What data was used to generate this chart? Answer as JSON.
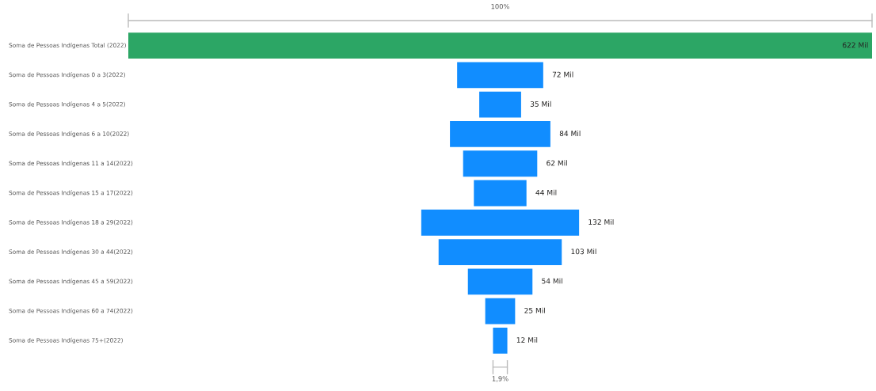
{
  "chart_data": {
    "type": "other",
    "categories": [
      "Soma de Pessoas Indígenas Total (2022)",
      "Soma de Pessoas Indígenas 0 a 3(2022)",
      "Soma de Pessoas Indígenas 4 a 5(2022)",
      "Soma de Pessoas Indígenas 6 a 10(2022)",
      "Soma de Pessoas Indígenas 11 a 14(2022)",
      "Soma de Pessoas Indígenas 15 a 17(2022)",
      "Soma de Pessoas Indígenas 18 a 29(2022)",
      "Soma de Pessoas Indígenas 30 a 44(2022)",
      "Soma de Pessoas Indígenas 45 a 59(2022)",
      "Soma de Pessoas Indígenas 60 a 74(2022)",
      "Soma de Pessoas Indígenas 75+(2022)"
    ],
    "values": [
      622,
      72,
      35,
      84,
      62,
      44,
      132,
      103,
      54,
      25,
      12
    ],
    "value_labels": [
      "622 Mil",
      "72 Mil",
      "35 Mil",
      "84 Mil",
      "62 Mil",
      "44 Mil",
      "132 Mil",
      "103 Mil",
      "54 Mil",
      "25 Mil",
      "12 Mil"
    ],
    "colors": [
      "#2ca665",
      "#118dff",
      "#118dff",
      "#118dff",
      "#118dff",
      "#118dff",
      "#118dff",
      "#118dff",
      "#118dff",
      "#118dff",
      "#118dff"
    ],
    "annotations": [
      "100%",
      "1,9%"
    ]
  }
}
